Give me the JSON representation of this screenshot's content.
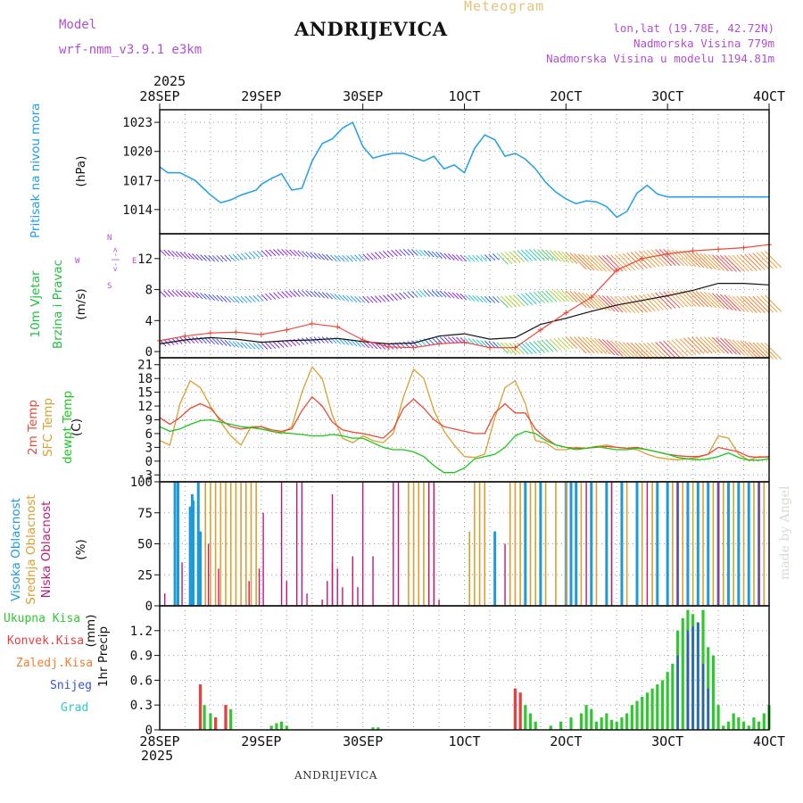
{
  "header": {
    "title": "ANDRIJEVICA",
    "subtitle": "Meteogram",
    "model_label": "Model",
    "model_name": "wrf-nmm_v3.9.1 e3km",
    "lonlat": "lon,lat (19.78E, 42.72N)",
    "elevation": "Nadmorska Visina 779m",
    "model_elevation": "Nadmorska Visina u modelu 1194.81m",
    "credit": "made by Angel",
    "footer_station": "ANDRIJEVICA"
  },
  "time_axis": {
    "year_top": "2025",
    "year_bottom": "2025",
    "labels": [
      "28SEP",
      "29SEP",
      "30SEP",
      "1OCT",
      "2OCT",
      "3OCT",
      "4OCT"
    ]
  },
  "colors": {
    "pressure": "#1ea0e8",
    "temp2m": "#e84a3a",
    "sfc": "#d8a030",
    "dew": "#18c818",
    "wind_gust": "#e84a3a",
    "wind_speed": "#111111",
    "cloud_high": "#1e9ad8",
    "cloud_mid": "#d8a030",
    "cloud_low": "#c0187a",
    "rain_total": "#30c830",
    "rain_conv": "#e84040",
    "rain_frz": "#f08030",
    "snow": "#3a50d8",
    "grad": "#30c8c8",
    "model_text": "#b050d0"
  },
  "chart_data": [
    {
      "type": "line",
      "title": "Pritisak na nivou mora",
      "ylabel": "(hPa)",
      "ylim": [
        1011.5,
        1024.3
      ],
      "yticks": [
        1014,
        1017,
        1020,
        1023
      ],
      "x_days": [
        0,
        0.08,
        0.2,
        0.35,
        0.5,
        0.6,
        0.7,
        0.8,
        0.95,
        1.0,
        1.1,
        1.2,
        1.3,
        1.4,
        1.5,
        1.6,
        1.7,
        1.8,
        1.9,
        2.0,
        2.1,
        2.2,
        2.3,
        2.4,
        2.5,
        2.6,
        2.7,
        2.8,
        2.9,
        3.0,
        3.1,
        3.2,
        3.3,
        3.4,
        3.5,
        3.6,
        3.7,
        3.8,
        3.9,
        4.0,
        4.1,
        4.2,
        4.3,
        4.4,
        4.5,
        4.6,
        4.7,
        4.8,
        4.9,
        5.0,
        5.1,
        5.2,
        5.3,
        5.4,
        5.5,
        5.6,
        5.7,
        5.8,
        5.9,
        6.0
      ],
      "values": [
        1018.4,
        1017.8,
        1017.8,
        1017.0,
        1015.5,
        1014.7,
        1015.0,
        1015.5,
        1016.0,
        1016.6,
        1017.2,
        1017.7,
        1016.0,
        1016.2,
        1019.0,
        1020.8,
        1021.3,
        1022.4,
        1023.0,
        1020.5,
        1019.3,
        1019.6,
        1019.8,
        1019.8,
        1019.4,
        1019.0,
        1019.5,
        1018.2,
        1018.6,
        1017.8,
        1020.3,
        1021.7,
        1021.2,
        1019.5,
        1019.8,
        1019.2,
        1018.2,
        1016.8,
        1015.8,
        1015.1,
        1014.6,
        1014.9,
        1014.8,
        1014.3,
        1013.2,
        1013.8,
        1015.7,
        1016.5,
        1015.6,
        1015.3,
        1015.3,
        1015.3,
        1015.3,
        1015.3,
        1015.3,
        1015.3,
        1015.3,
        1015.3,
        1015.3,
        1015.3
      ]
    },
    {
      "type": "line",
      "title": "10m Vjetar Brzina i Pravac",
      "ylabel": "(m/s)",
      "compass": "W <-|-> E",
      "compass_ns": "S <-|-> N",
      "ylim": [
        -0.8,
        15.2
      ],
      "yticks": [
        0,
        4,
        8,
        12
      ],
      "x_days": [
        0,
        0.25,
        0.5,
        0.75,
        1.0,
        1.25,
        1.5,
        1.75,
        2.0,
        2.25,
        2.5,
        2.75,
        3.0,
        3.25,
        3.5,
        3.75,
        4.0,
        4.25,
        4.5,
        4.75,
        5.0,
        5.25,
        5.5,
        5.75,
        6.0
      ],
      "series": [
        {
          "name": "Brzina",
          "values": [
            1.0,
            1.5,
            1.8,
            1.6,
            1.2,
            1.4,
            1.5,
            1.7,
            1.3,
            1.0,
            1.1,
            2.0,
            2.3,
            1.6,
            1.8,
            3.5,
            4.3,
            5.2,
            6.0,
            6.6,
            7.2,
            7.9,
            8.8,
            8.8,
            8.6
          ]
        },
        {
          "name": "Udari",
          "values": [
            1.4,
            2.0,
            2.4,
            2.5,
            2.2,
            2.8,
            3.6,
            3.2,
            1.5,
            0.6,
            0.5,
            1.0,
            1.2,
            0.5,
            0.5,
            2.8,
            5.0,
            7.0,
            10.5,
            12.0,
            12.6,
            13.0,
            13.2,
            13.4,
            13.8
          ]
        }
      ]
    },
    {
      "type": "line",
      "title": "2m Temp / SFC Temp / dewpt Temp",
      "ylabel": "(C)",
      "ylim": [
        -4.5,
        22.5
      ],
      "yticks": [
        -3,
        0,
        3,
        6,
        9,
        12,
        15,
        18,
        21
      ],
      "x_days": [
        0,
        0.1,
        0.2,
        0.3,
        0.4,
        0.5,
        0.6,
        0.7,
        0.8,
        0.9,
        1.0,
        1.1,
        1.2,
        1.3,
        1.4,
        1.5,
        1.6,
        1.7,
        1.8,
        1.9,
        2.0,
        2.1,
        2.2,
        2.3,
        2.4,
        2.5,
        2.6,
        2.7,
        2.8,
        2.9,
        3.0,
        3.1,
        3.2,
        3.3,
        3.4,
        3.5,
        3.6,
        3.7,
        3.8,
        3.9,
        4.0,
        4.1,
        4.2,
        4.3,
        4.4,
        4.5,
        4.6,
        4.7,
        4.8,
        4.9,
        5.0,
        5.1,
        5.2,
        5.3,
        5.4,
        5.5,
        5.6,
        5.7,
        5.8,
        5.9,
        6.0
      ],
      "series": [
        {
          "name": "2m Temp",
          "values": [
            9.5,
            8.0,
            9.5,
            11.5,
            12.5,
            11.5,
            9.0,
            7.5,
            7.0,
            7.3,
            7.5,
            6.8,
            6.5,
            7.0,
            11.0,
            14.0,
            12.0,
            8.5,
            6.8,
            6.3,
            6.0,
            5.5,
            5.0,
            7.0,
            11.5,
            13.5,
            11.5,
            9.0,
            7.5,
            7.0,
            6.5,
            6.0,
            6.0,
            10.5,
            12.5,
            10.5,
            10.5,
            7.0,
            5.0,
            3.5,
            3.0,
            2.8,
            2.8,
            3.0,
            3.2,
            3.0,
            2.8,
            3.0,
            2.5,
            2.0,
            1.5,
            1.2,
            1.0,
            1.0,
            1.5,
            3.0,
            2.5,
            2.0,
            1.0,
            0.8,
            1.0
          ]
        },
        {
          "name": "SFC Temp",
          "values": [
            4.5,
            3.5,
            12.5,
            17.5,
            16.0,
            12.0,
            8.5,
            5.5,
            3.5,
            7.5,
            7.5,
            6.5,
            6.0,
            7.5,
            15.0,
            20.5,
            18.0,
            10.0,
            5.0,
            4.0,
            5.5,
            4.5,
            4.0,
            6.0,
            14.0,
            20.0,
            18.0,
            11.0,
            6.5,
            3.5,
            1.0,
            0.8,
            1.5,
            9.5,
            16.0,
            17.5,
            12.5,
            4.5,
            4.0,
            2.5,
            2.5,
            3.0,
            2.8,
            3.2,
            3.5,
            3.0,
            2.8,
            2.5,
            1.5,
            0.8,
            0.5,
            0.3,
            0.5,
            0.8,
            1.5,
            5.5,
            5.0,
            1.5,
            0.2,
            1.0,
            0.8
          ]
        },
        {
          "name": "dewpt Temp",
          "values": [
            7.5,
            6.5,
            7.0,
            8.0,
            8.8,
            9.0,
            8.5,
            8.0,
            7.5,
            7.3,
            7.0,
            6.5,
            6.2,
            6.0,
            5.8,
            5.5,
            5.5,
            5.8,
            5.5,
            5.0,
            5.0,
            4.0,
            3.0,
            2.5,
            2.5,
            2.0,
            1.0,
            -1.0,
            -2.5,
            -2.5,
            -1.5,
            0.5,
            1.0,
            1.5,
            3.0,
            5.5,
            6.5,
            6.0,
            4.5,
            3.5,
            3.0,
            2.5,
            2.8,
            3.2,
            2.8,
            2.5,
            2.5,
            2.8,
            2.5,
            2.0,
            1.5,
            0.8,
            0.5,
            0.3,
            0.5,
            1.0,
            1.8,
            0.8,
            0.2,
            0.2,
            0.5
          ]
        }
      ]
    },
    {
      "type": "bar",
      "title": "Visoka / Srednja / Niska Oblacnost",
      "ylabel": "(%)",
      "ylim": [
        0,
        100
      ],
      "yticks": [
        0,
        25,
        50,
        75,
        100
      ],
      "series": [
        {
          "name": "Visoka Oblacnost",
          "x_days": [
            0.15,
            0.18,
            0.3,
            0.32,
            0.33,
            0.38,
            0.4,
            3.3,
            3.6,
            3.75,
            4.0,
            4.05,
            4.1,
            4.25,
            4.4,
            4.55,
            4.7,
            4.9,
            5.0,
            5.1,
            5.2,
            5.3,
            5.4,
            5.5,
            5.6,
            5.7,
            5.8,
            5.9
          ],
          "values": [
            100,
            100,
            80,
            90,
            85,
            100,
            60,
            60,
            100,
            100,
            100,
            100,
            100,
            100,
            100,
            100,
            100,
            100,
            100,
            100,
            100,
            100,
            100,
            100,
            100,
            100,
            100,
            100
          ]
        },
        {
          "name": "Srednja Oblacnost",
          "x_days": [
            0.45,
            0.5,
            0.55,
            0.6,
            0.65,
            0.7,
            0.75,
            0.8,
            0.85,
            0.9,
            0.95,
            2.45,
            2.5,
            2.55,
            2.6,
            2.65,
            2.7,
            3.05,
            3.1,
            3.15,
            3.2,
            3.45,
            3.5,
            3.55,
            3.65,
            3.7,
            3.8,
            3.9,
            4.0,
            4.15,
            4.3,
            4.45,
            4.6,
            4.75,
            4.85,
            5.05,
            5.15,
            5.25,
            5.35,
            5.45,
            5.55,
            5.65,
            5.75,
            5.85,
            5.95
          ],
          "values": [
            100,
            100,
            100,
            100,
            100,
            100,
            100,
            100,
            100,
            100,
            100,
            100,
            100,
            100,
            100,
            100,
            100,
            60,
            100,
            100,
            100,
            100,
            100,
            100,
            100,
            100,
            100,
            100,
            100,
            100,
            100,
            100,
            100,
            100,
            100,
            100,
            100,
            100,
            100,
            100,
            100,
            100,
            100,
            100,
            100
          ]
        },
        {
          "name": "Niska Oblacnost",
          "x_days": [
            0.05,
            0.22,
            0.48,
            0.58,
            0.88,
            0.98,
            1.02,
            1.2,
            1.25,
            1.35,
            1.4,
            1.45,
            1.6,
            1.65,
            1.7,
            1.7,
            1.75,
            1.8,
            1.9,
            1.95,
            2.0,
            2.1,
            2.3,
            2.35,
            2.65,
            2.7,
            2.75,
            3.4,
            4.2,
            4.45,
            4.8,
            5.1,
            5.5,
            5.9
          ],
          "values": [
            10,
            35,
            50,
            30,
            20,
            30,
            75,
            100,
            20,
            100,
            100,
            10,
            5,
            20,
            35,
            90,
            30,
            15,
            40,
            15,
            100,
            40,
            100,
            100,
            100,
            100,
            5,
            50,
            100,
            100,
            100,
            100,
            100,
            100
          ]
        }
      ]
    },
    {
      "type": "bar",
      "title": "1hr Precip",
      "ylabel": "1hr Precip (mm)",
      "ylim": [
        0,
        1.5
      ],
      "yticks": [
        0,
        0.3,
        0.6,
        0.9,
        1.2
      ],
      "legend": [
        "Ukupna Kisa",
        "Konvek.Kisa",
        "Zaledj.Kisa",
        "Snijeg",
        "Grad"
      ],
      "series": [
        {
          "name": "Ukupna Kisa",
          "x_days": [
            0.4,
            0.44,
            0.5,
            0.55,
            0.65,
            0.7,
            1.1,
            1.15,
            1.2,
            1.25,
            2.1,
            2.15,
            3.5,
            3.55,
            3.6,
            3.65,
            3.7,
            3.85,
            3.95,
            4.05,
            4.15,
            4.2,
            4.25,
            4.3,
            4.35,
            4.4,
            4.45,
            4.5,
            4.55,
            4.6,
            4.65,
            4.7,
            4.75,
            4.8,
            4.85,
            4.9,
            4.95,
            5.0,
            5.05,
            5.1,
            5.15,
            5.2,
            5.25,
            5.3,
            5.35,
            5.4,
            5.45,
            5.5,
            5.55,
            5.6,
            5.65,
            5.7,
            5.75,
            5.8,
            5.85,
            5.9,
            5.95,
            6.0
          ],
          "values": [
            0.55,
            0.3,
            0.2,
            0.15,
            0.3,
            0.25,
            0.05,
            0.08,
            0.1,
            0.05,
            0.03,
            0.03,
            0.5,
            0.45,
            0.3,
            0.2,
            0.1,
            0.05,
            0.1,
            0.15,
            0.2,
            0.3,
            0.25,
            0.1,
            0.15,
            0.2,
            0.12,
            0.1,
            0.15,
            0.2,
            0.3,
            0.35,
            0.4,
            0.45,
            0.5,
            0.55,
            0.6,
            0.7,
            0.8,
            1.2,
            1.35,
            1.45,
            1.4,
            1.3,
            1.45,
            1.0,
            0.9,
            0.3,
            0.05,
            0.1,
            0.2,
            0.15,
            0.1,
            0.05,
            0.15,
            0.1,
            0.2,
            0.3
          ]
        },
        {
          "name": "Konvek.Kisa",
          "x_days": [
            0.4,
            0.55,
            0.65,
            3.5,
            3.55
          ],
          "values": [
            0.55,
            0.15,
            0.3,
            0.5,
            0.45
          ]
        },
        {
          "name": "Zaledj.Kisa",
          "x_days": [],
          "values": []
        },
        {
          "name": "Snijeg",
          "x_days": [
            5.1,
            5.2,
            5.25,
            5.3,
            5.35,
            5.4
          ],
          "values": [
            0.9,
            1.2,
            1.25,
            1.3,
            0.8,
            0.5
          ]
        },
        {
          "name": "Grad",
          "x_days": [],
          "values": []
        }
      ]
    }
  ],
  "panels": {
    "pressure": {
      "label": "Pritisak na nivou mora",
      "unit": "(hPa)"
    },
    "wind": {
      "label1": "10m Vjetar",
      "label2": "Brzina i Pravac",
      "unit": "(m/s)",
      "compass_w": "W",
      "compass_e": "E",
      "compass_arrow": "<-|->",
      "compass_n": "N",
      "compass_s": "S"
    },
    "temp": {
      "label1": "2m Temp",
      "label2": "SFC Temp",
      "label3": "dewpt Temp",
      "unit": "(C)"
    },
    "cloud": {
      "label1": "Visoka Oblacnost",
      "label2": "Srednja Oblacnost",
      "label3": "Niska Oblacnost",
      "unit": "(%)"
    },
    "precip": {
      "label": "1hr Precip",
      "unit": "(mm)",
      "legend": [
        "Ukupna Kisa",
        "Konvek.Kisa",
        "Zaledj.Kisa",
        "Snijeg",
        "Grad"
      ]
    }
  }
}
